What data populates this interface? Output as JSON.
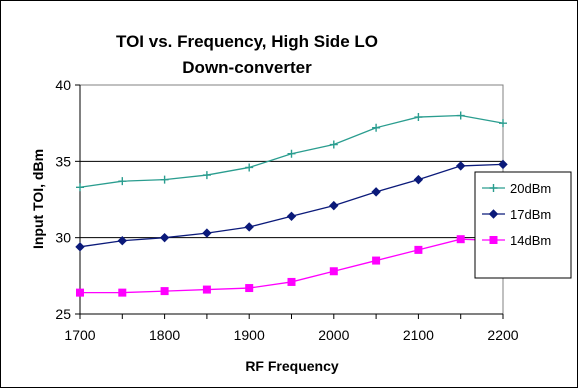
{
  "chart_data": {
    "type": "line",
    "title": "TOI vs. Frequency, High Side LO",
    "subtitle": "Down-converter",
    "xlabel": "RF Frequency",
    "ylabel": "Input TOI, dBm",
    "x": [
      1700,
      1750,
      1800,
      1850,
      1900,
      1950,
      2000,
      2050,
      2100,
      2150,
      2200
    ],
    "xticks": [
      "1700",
      "1800",
      "1900",
      "2000",
      "2100",
      "2200"
    ],
    "yticks": [
      "25",
      "30",
      "35",
      "40"
    ],
    "xlim": [
      1700,
      2200
    ],
    "ylim": [
      25,
      40
    ],
    "grid": "horizontal major",
    "legend_position": "right",
    "series": [
      {
        "name": "20dBm",
        "color": "#2a9d8f",
        "marker": "plus",
        "values": [
          33.3,
          33.7,
          33.8,
          34.1,
          34.6,
          35.5,
          36.1,
          37.2,
          37.9,
          38.0,
          37.5
        ]
      },
      {
        "name": "17dBm",
        "color": "#0b1a7a",
        "marker": "diamond",
        "values": [
          29.4,
          29.8,
          30.0,
          30.3,
          30.7,
          31.4,
          32.1,
          33.0,
          33.8,
          34.7,
          34.8
        ]
      },
      {
        "name": "14dBm",
        "color": "#ff00ff",
        "marker": "square",
        "values": [
          26.4,
          26.4,
          26.5,
          26.6,
          26.7,
          27.1,
          27.8,
          28.5,
          29.2,
          29.9,
          29.8
        ]
      }
    ]
  }
}
